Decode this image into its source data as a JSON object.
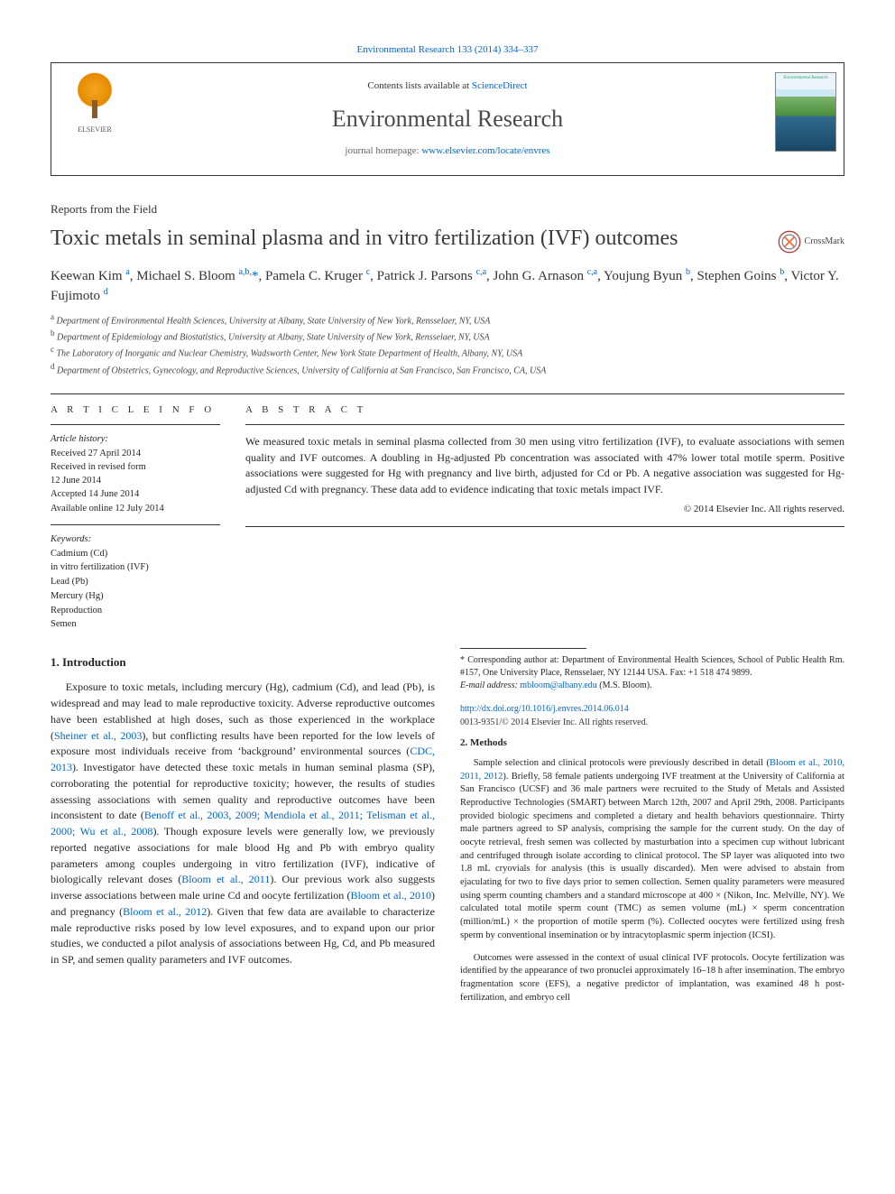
{
  "colors": {
    "link": "#0066cc",
    "text": "#252525",
    "heading": "#3a3a3a",
    "rule": "#333333",
    "background": "#ffffff"
  },
  "header": {
    "top_link_prefix": "Environmental Research 133 (2014) 334–337",
    "contents_prefix": "Contents lists available at ",
    "contents_link": "ScienceDirect",
    "journal_name": "Environmental Research",
    "homepage_prefix": "journal homepage: ",
    "homepage_url": "www.elsevier.com/locate/envres",
    "elsevier_label": "ELSEVIER",
    "cover_caption": "Environmental Research"
  },
  "article": {
    "type": "Reports from the Field",
    "title": "Toxic metals in seminal plasma and in vitro fertilization (IVF) outcomes",
    "crossmark_label": "CrossMark"
  },
  "authors_html": "Keewan Kim <sup>a</sup>, Michael S. Bloom <sup>a,b,</sup><span class='ast'>*</span>, Pamela C. Kruger <sup>c</sup>, Patrick J. Parsons <sup>c,a</sup>, John G. Arnason <sup>c,a</sup>, Youjung Byun <sup>b</sup>, Stephen Goins <sup>b</sup>, Victor Y. Fujimoto <sup>d</sup>",
  "affiliations": [
    {
      "key": "a",
      "text": "Department of Environmental Health Sciences, University at Albany, State University of New York, Rensselaer, NY, USA"
    },
    {
      "key": "b",
      "text": "Department of Epidemiology and Biostatistics, University at Albany, State University of New York, Rensselaer, NY, USA"
    },
    {
      "key": "c",
      "text": "The Laboratory of Inorganic and Nuclear Chemistry, Wadsworth Center, New York State Department of Health, Albany, NY, USA"
    },
    {
      "key": "d",
      "text": "Department of Obstetrics, Gynecology, and Reproductive Sciences, University of California at San Francisco, San Francisco, CA, USA"
    }
  ],
  "article_info": {
    "heading": "A R T I C L E  I N F O",
    "history_label": "Article history:",
    "history": [
      "Received 27 April 2014",
      "Received in revised form",
      "12 June 2014",
      "Accepted 14 June 2014",
      "Available online 12 July 2014"
    ],
    "keywords_label": "Keywords:",
    "keywords": [
      "Cadmium (Cd)",
      "in vitro fertilization (IVF)",
      "Lead (Pb)",
      "Mercury (Hg)",
      "Reproduction",
      "Semen"
    ]
  },
  "abstract": {
    "heading": "A B S T R A C T",
    "body": "We measured toxic metals in seminal plasma collected from 30 men using vitro fertilization (IVF), to evaluate associations with semen quality and IVF outcomes. A doubling in Hg-adjusted Pb concentration was associated with 47% lower total motile sperm. Positive associations were suggested for Hg with pregnancy and live birth, adjusted for Cd or Pb. A negative association was suggested for Hg-adjusted Cd with pregnancy. These data add to evidence indicating that toxic metals impact IVF.",
    "copyright": "© 2014 Elsevier Inc. All rights reserved."
  },
  "sections": {
    "intro_heading": "1.  Introduction",
    "intro_p1_a": "Exposure to toxic metals, including mercury (Hg), cadmium (Cd), and lead (Pb), is widespread and may lead to male reproductive toxicity. Adverse reproductive outcomes have been established at high doses, such as those experienced in the workplace (",
    "intro_ref1": "Sheiner et al., 2003",
    "intro_p1_b": "), but conflicting results have been reported for the low levels of exposure most individuals receive from ‘background’ environmental sources (",
    "intro_ref2": "CDC, 2013",
    "intro_p1_c": "). Investigator have detected these toxic metals in human seminal plasma (SP), corroborating the potential for reproductive toxicity; however, the results of studies assessing associations with semen quality and reproductive outcomes have been inconsistent to date (",
    "intro_ref3": "Benoff et al., 2003, 2009; Mendiola et al., 2011; Telisman et al., 2000; Wu et al., 2008",
    "intro_p1_d": "). Though exposure levels were generally low, we previously reported negative associations for male blood Hg and Pb with embryo quality parameters among couples undergoing in vitro fertilization (IVF), indicative of biologically relevant doses (",
    "intro_ref4": "Bloom et al., 2011",
    "intro_p1_e": "). Our previous work also suggests inverse associations between male urine Cd and oocyte fertilization (",
    "intro_ref5": "Bloom et al., 2010",
    "intro_p1_f": ") and pregnancy (",
    "intro_ref6": "Bloom et al., 2012",
    "intro_p1_g": "). Given that few data are available to characterize male reproductive risks posed by low level exposures, and to expand upon our prior studies, we conducted a pilot analysis of associations between Hg, Cd, and Pb measured in SP, and semen quality parameters and IVF outcomes.",
    "methods_heading": "2.  Methods",
    "methods_p1_a": "Sample selection and clinical protocols were previously described in detail (",
    "methods_ref1": "Bloom et al., 2010, 2011, 2012",
    "methods_p1_b": "). Briefly, 58 female patients undergoing IVF treatment at the University of California at San Francisco (UCSF) and 36 male partners were recruited to the Study of Metals and Assisted Reproductive Technologies (SMART) between March 12th, 2007 and April 29th, 2008. Participants provided biologic specimens and completed a dietary and health behaviors questionnaire. Thirty male partners agreed to SP analysis, comprising the sample for the current study. On the day of oocyte retrieval, fresh semen was collected by masturbation into a specimen cup without lubricant and centrifuged through isolate according to clinical protocol. The SP layer was aliquoted into two 1.8 mL cryovials for analysis (this is usually discarded). Men were advised to abstain from ejaculating for two to five days prior to semen collection. Semen quality parameters were measured using sperm counting chambers and a standard microscope at 400 × (Nikon, Inc. Melville, NY). We calculated total motile sperm count (TMC) as semen volume (mL) × sperm concentration (million/mL) × the proportion of motile sperm (%). Collected oocytes were fertilized using fresh sperm by conventional insemination or by intracytoplasmic sperm injection (ICSI).",
    "methods_p2": "Outcomes were assessed in the context of usual clinical IVF protocols. Oocyte fertilization was identified by the appearance of two pronuclei approximately 16–18 h after insemination. The embryo fragmentation score (EFS), a negative predictor of implantation, was examined 48 h post-fertilization, and embryo cell"
  },
  "footnotes": {
    "corr": "* Corresponding author at: Department of Environmental Health Sciences, School of Public Health Rm. #157, One University Place, Rensselaer, NY 12144 USA. Fax: +1 518 474 9899.",
    "email_label": "E-mail address: ",
    "email": "mbloom@albany.edu",
    "email_suffix": " (M.S. Bloom)."
  },
  "footer": {
    "doi": "http://dx.doi.org/10.1016/j.envres.2014.06.014",
    "issn_line": "0013-9351/© 2014 Elsevier Inc. All rights reserved."
  }
}
